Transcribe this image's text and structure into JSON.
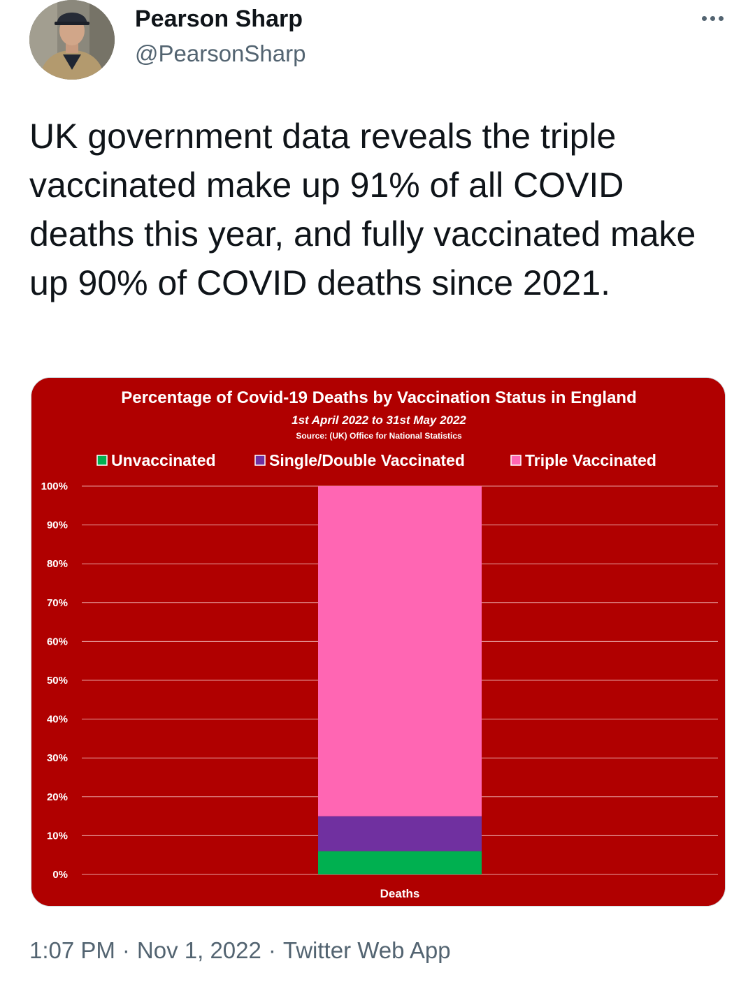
{
  "author": {
    "name": "Pearson Sharp",
    "handle": "@PearsonSharp"
  },
  "tweet": {
    "text": "UK government data reveals the triple vaccinated make up 91% of all COVID deaths this year, and fully vaccinated make up 90% of COVID deaths since 2021.",
    "time": "1:07 PM",
    "date": "Nov 1, 2022",
    "source": "Twitter Web App",
    "separator": "·"
  },
  "icons": {
    "more": "more-horizontal-icon",
    "avatar": "avatar-photo"
  },
  "colors": {
    "chart_background": "#b00000",
    "unvaccinated": "#00b050",
    "single_double": "#7030a0",
    "triple": "#ff66b3"
  },
  "chart_data": {
    "type": "bar",
    "stacked": true,
    "title": "Percentage of Covid-19 Deaths by Vaccination Status in England",
    "subtitle": "1st April 2022 to 31st May 2022",
    "source": "Source: (UK) Office for National Statistics",
    "categories": [
      "Deaths"
    ],
    "series": [
      {
        "name": "Unvaccinated",
        "values": [
          6
        ],
        "color": "#00b050"
      },
      {
        "name": "Single/Double Vaccinated",
        "values": [
          9
        ],
        "color": "#7030a0"
      },
      {
        "name": "Triple Vaccinated",
        "values": [
          85
        ],
        "color": "#ff66b3"
      }
    ],
    "yticks": [
      "0%",
      "10%",
      "20%",
      "30%",
      "40%",
      "50%",
      "60%",
      "70%",
      "80%",
      "90%",
      "100%"
    ],
    "ylim": [
      0,
      100
    ],
    "grid": true,
    "legend": "top"
  }
}
